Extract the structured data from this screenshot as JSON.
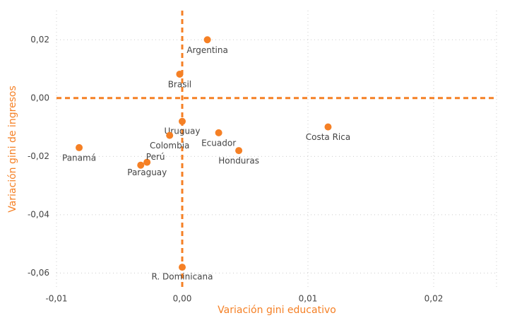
{
  "chart_data": {
    "type": "scatter",
    "x_label": "Variación gini educativo",
    "y_label": "Variación gini de ingresos",
    "color": "#f58025",
    "points": [
      {
        "label": "Argentina",
        "x": 0.002,
        "y": 0.02
      },
      {
        "label": "Brasil",
        "x": -0.0002,
        "y": 0.0082
      },
      {
        "label": "Uruguay",
        "x": 0.0,
        "y": -0.008
      },
      {
        "label": "Colombia",
        "x": -0.001,
        "y": -0.0128
      },
      {
        "label": "Ecuador",
        "x": 0.0029,
        "y": -0.0119
      },
      {
        "label": "Honduras",
        "x": 0.0045,
        "y": -0.018
      },
      {
        "label": "Costa Rica",
        "x": 0.0116,
        "y": -0.0099
      },
      {
        "label": "Panamá",
        "x": -0.0082,
        "y": -0.017
      },
      {
        "label": "Perú",
        "x": -0.0028,
        "y": -0.022
      },
      {
        "label": "Paraguay",
        "x": -0.0033,
        "y": -0.023
      },
      {
        "label": "R. Dominicana",
        "x": 0.0,
        "y": -0.058
      }
    ],
    "xlim": [
      -0.01,
      0.025
    ],
    "ylim": [
      -0.065,
      0.03
    ],
    "xticks": [
      {
        "value": -0.01,
        "label": "-0,01"
      },
      {
        "value": 0,
        "label": "0,00"
      },
      {
        "value": 0.01,
        "label": "0,01"
      },
      {
        "value": 0.02,
        "label": "0,02"
      }
    ],
    "yticks": [
      {
        "value": -0.06,
        "label": "-0,06"
      },
      {
        "value": -0.04,
        "label": "-0,04"
      },
      {
        "value": -0.02,
        "label": "-0,02"
      },
      {
        "value": 0,
        "label": "0,00"
      },
      {
        "value": 0.02,
        "label": "0,02"
      }
    ],
    "grid": true
  }
}
